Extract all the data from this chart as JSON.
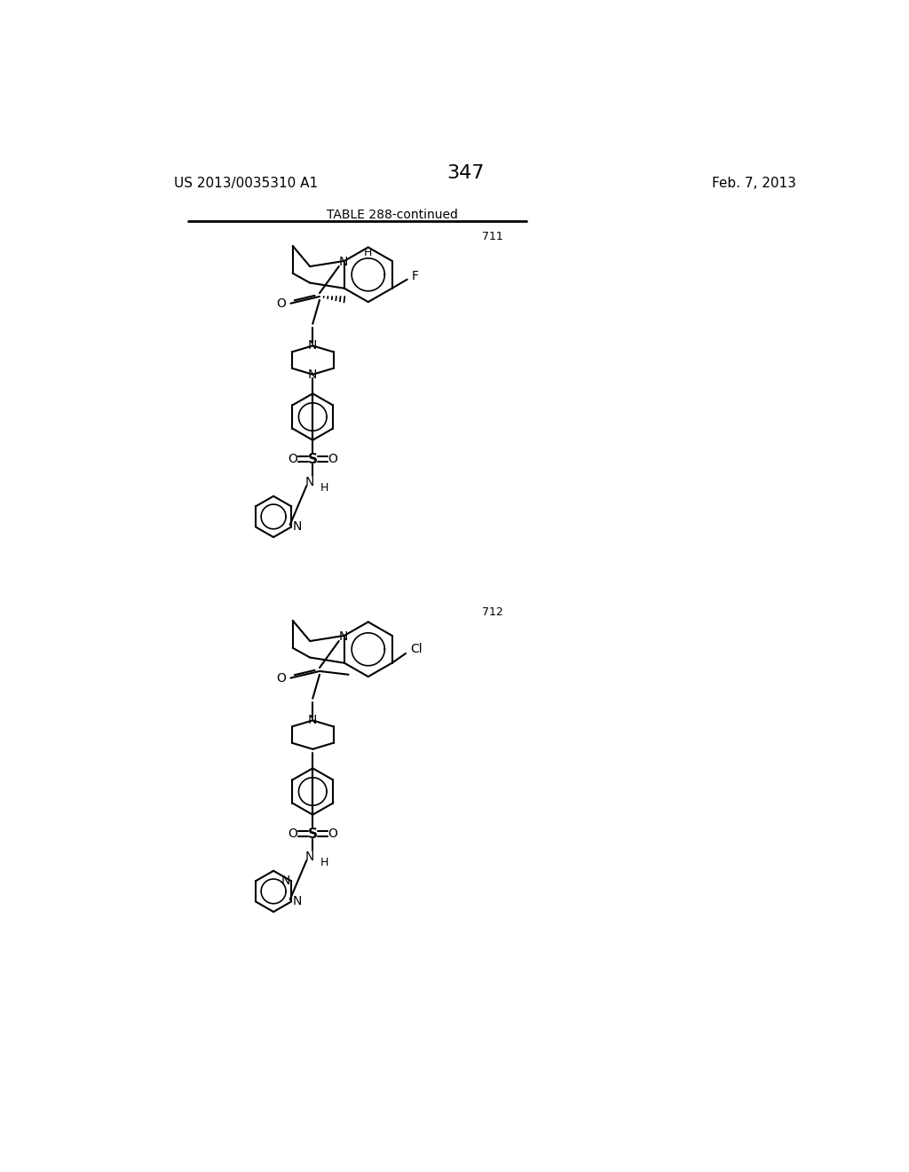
{
  "background_color": "#ffffff",
  "page_number": "347",
  "patent_left": "US 2013/0035310 A1",
  "patent_right": "Feb. 7, 2013",
  "table_title": "TABLE 288-continued",
  "compound_711_label": "711",
  "compound_712_label": "712",
  "line_color": "#000000",
  "text_color": "#000000"
}
